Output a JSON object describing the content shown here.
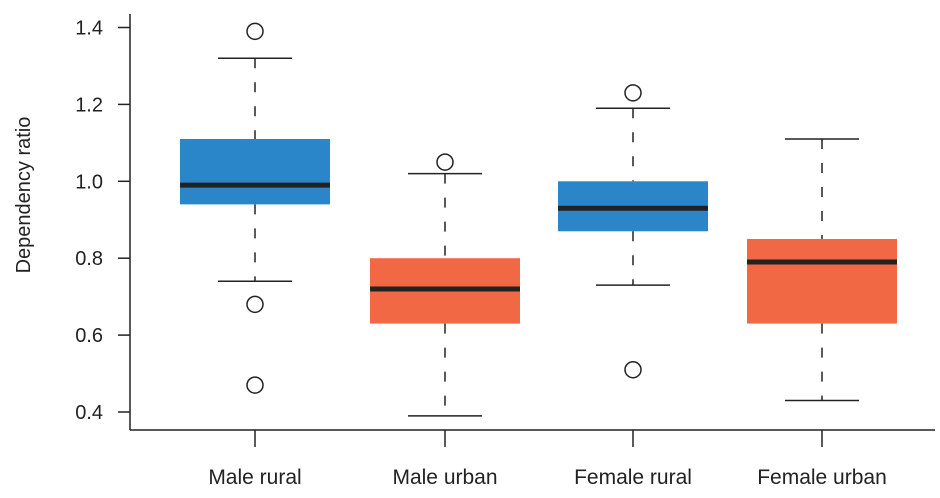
{
  "chart_data": {
    "type": "boxplot",
    "title": "",
    "xlabel": "",
    "ylabel": "Dependency ratio",
    "ylim": [
      0.35,
      1.45
    ],
    "yticks": [
      0.4,
      0.6,
      0.8,
      1.0,
      1.2,
      1.4
    ],
    "ytick_labels": [
      "0.4",
      "0.6",
      "0.8",
      "1.0",
      "1.2",
      "1.4"
    ],
    "grid": false,
    "legend": "none",
    "categories": [
      "Male rural",
      "Male urban",
      "Female rural",
      "Female urban"
    ],
    "series": [
      {
        "whisker_low": 0.74,
        "q1": 0.94,
        "median": 0.99,
        "q3": 1.11,
        "whisker_high": 1.32,
        "outliers": [
          1.39,
          0.68,
          0.47
        ],
        "color": "#2B85C9"
      },
      {
        "whisker_low": 0.39,
        "q1": 0.63,
        "median": 0.72,
        "q3": 0.8,
        "whisker_high": 1.02,
        "outliers": [
          1.05
        ],
        "color": "#F06844"
      },
      {
        "whisker_low": 0.73,
        "q1": 0.87,
        "median": 0.93,
        "q3": 1.0,
        "whisker_high": 1.19,
        "outliers": [
          1.23,
          0.51
        ],
        "color": "#2B85C9"
      },
      {
        "whisker_low": 0.43,
        "q1": 0.63,
        "median": 0.79,
        "q3": 0.85,
        "whisker_high": 1.11,
        "outliers": [],
        "color": "#F06844"
      }
    ]
  }
}
